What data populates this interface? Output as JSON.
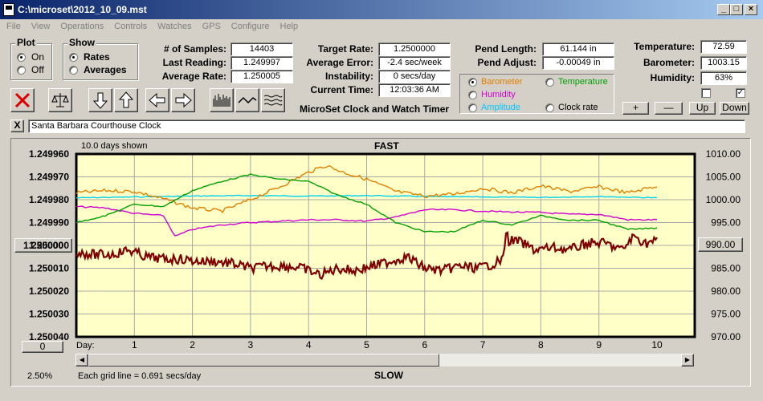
{
  "window": {
    "title": "C:\\microset\\2012_10_09.mst"
  },
  "menu": [
    "File",
    "View",
    "Operations",
    "Controls",
    "Watches",
    "GPS",
    "Configure",
    "Help"
  ],
  "plot_group": {
    "title": "Plot",
    "options": [
      "On",
      "Off"
    ],
    "selected": "On"
  },
  "show_group": {
    "title": "Show",
    "options": [
      "Rates",
      "Averages"
    ],
    "selected": "Rates"
  },
  "stats": {
    "samples_label": "# of Samples:",
    "samples": "14403",
    "last_label": "Last Reading:",
    "last": "1.249997",
    "avg_label": "Average Rate:",
    "avg": "1.250005",
    "target_label": "Target Rate:",
    "target": "1.2500000",
    "avgerr_label": "Average Error:",
    "avgerr": "-2.4 sec/week",
    "instab_label": "Instability:",
    "instab": "0 secs/day",
    "time_label": "Current Time:",
    "time": "12:03:36 AM",
    "pendlen_label": "Pend Length:",
    "pendlen": "61.144 in",
    "pendadj_label": "Pend Adjust:",
    "pendadj": "-0.00049 in",
    "temp_label": "Temperature:",
    "temp": "72.59",
    "baro_label": "Barometer:",
    "baro": "1003.15",
    "hum_label": "Humidity:",
    "hum": "63%"
  },
  "overlay": {
    "options": [
      {
        "label": "Barometer",
        "color": "#ff8c00",
        "selected": true
      },
      {
        "label": "Temperature",
        "color": "#00b000",
        "selected": false
      },
      {
        "label": "Humidity",
        "color": "#d000d0",
        "selected": false
      },
      {
        "label": "Clock rate",
        "color": "#000000",
        "selected": false
      },
      {
        "label": "Amplitude",
        "color": "#00c8ff",
        "selected": false
      }
    ]
  },
  "adjust_buttons": {
    "plus": "+",
    "minus": "—",
    "up": "Up",
    "down": "Down"
  },
  "app_title": "MicroSet Clock and Watch Timer",
  "clock_name": "Santa Barbara Courthouse Clock",
  "close_x": "X",
  "chart_header": {
    "days_shown": "10.0 days shown",
    "top": "FAST",
    "bottom": "SLOW",
    "grid_note": "Each grid line = 0.691 secs/day",
    "scale": "2.50%",
    "day_label": "Day:"
  },
  "left_center_button": "1.250000",
  "right_center_button": "990.00",
  "scroll_button": "0",
  "colors": {
    "rate": "#800000",
    "baro": "#e08000",
    "temp": "#00a000",
    "hum": "#d000d0",
    "amp": "#00d0f0",
    "plotbg": "#ffffc8"
  },
  "chart_data": {
    "type": "line",
    "xlim": [
      0,
      10
    ],
    "x_ticks": [
      "1",
      "2",
      "3",
      "4",
      "5",
      "6",
      "7",
      "8",
      "9",
      "10"
    ],
    "left_axis": {
      "ticks": [
        "1.249960",
        "1.249970",
        "1.249980",
        "1.249990",
        "1.250000",
        "1.250010",
        "1.250020",
        "1.250030",
        "1.250040"
      ],
      "range": [
        1.24996,
        1.25004
      ],
      "inverted": true
    },
    "right_axis": {
      "ticks": [
        "1010.00",
        "1005.00",
        "1000.00",
        "995.00",
        "990.00",
        "985.00",
        "980.00",
        "975.00",
        "970.00"
      ],
      "range": [
        970,
        1010
      ]
    },
    "series": [
      {
        "key": "rate",
        "axis": "left",
        "x": [
          0,
          0.3,
          0.6,
          0.9,
          1.2,
          1.5,
          1.8,
          2.1,
          2.4,
          2.7,
          3,
          3.3,
          3.6,
          3.9,
          4.2,
          4.5,
          4.8,
          5.1,
          5.4,
          5.7,
          6,
          6.3,
          6.6,
          6.9,
          7.2,
          7.35,
          7.4,
          7.45,
          7.6,
          7.9,
          8.2,
          8.5,
          8.8,
          9.1,
          9.4,
          9.6,
          9.8,
          10
        ],
        "y": [
          1.250003,
          1.250004,
          1.250004,
          1.250002,
          1.250005,
          1.250006,
          1.250006,
          1.250007,
          1.250007,
          1.250008,
          1.25001,
          1.250009,
          1.250009,
          1.25001,
          1.250013,
          1.25001,
          1.250011,
          1.250009,
          1.250007,
          1.250005,
          1.25001,
          1.250011,
          1.250009,
          1.25001,
          1.250008,
          1.250006,
          1.249994,
          1.249998,
          1.249998,
          1.250002,
          1.250001,
          1.250002,
          1.249999,
          1.249999,
          1.250002,
          1.249996,
          1.249999,
          1.249998
        ]
      },
      {
        "key": "baro",
        "axis": "right",
        "x": [
          0,
          0.5,
          1,
          1.5,
          2,
          2.5,
          3,
          3.5,
          4,
          4.3,
          4.6,
          5,
          5.5,
          6,
          6.5,
          7,
          7.5,
          8,
          8.5,
          9,
          9.5,
          10
        ],
        "y": [
          1001.5,
          1002,
          1001.8,
          1000.2,
          998.2,
          997.5,
          1000,
          1002.8,
          1006,
          1007.5,
          1006,
          1004.5,
          1001.8,
          1000.8,
          1001.2,
          1002.5,
          1001.5,
          1003,
          1001.8,
          1002.8,
          1001.5,
          1003
        ]
      },
      {
        "key": "temp",
        "axis": "right",
        "x": [
          0,
          0.5,
          1,
          1.5,
          2,
          2.5,
          3,
          3.5,
          4,
          4.5,
          5,
          5.5,
          6,
          6.5,
          7,
          7.5,
          8,
          8.5,
          9,
          9.5,
          10
        ],
        "y": [
          995,
          996.5,
          999,
          998.5,
          1002,
          1004,
          1005.5,
          1004.5,
          1004,
          1001,
          999,
          995,
          993,
          993,
          995.5,
          994.5,
          996.5,
          995.5,
          995.5,
          993.5,
          993.8
        ]
      },
      {
        "key": "hum",
        "axis": "right",
        "x": [
          0,
          0.5,
          1,
          1.5,
          1.7,
          2,
          2.5,
          3,
          3.5,
          4,
          4.5,
          5,
          5.5,
          6,
          6.5,
          7,
          7.5,
          8,
          8.5,
          9,
          9.5,
          10
        ],
        "y": [
          998.5,
          998.2,
          997,
          996.5,
          992,
          993.5,
          994.5,
          995,
          995.3,
          995.6,
          995.6,
          995.3,
          996.2,
          997.8,
          997.8,
          997.5,
          997.3,
          997.2,
          996.8,
          996.8,
          995.6,
          995.6
        ]
      },
      {
        "key": "amp",
        "axis": "right",
        "x": [
          0,
          1,
          2,
          3,
          4,
          5,
          6,
          7,
          8,
          9,
          10
        ],
        "y": [
          1000.4,
          1000.6,
          1000.8,
          1000.9,
          1000.8,
          1000.9,
          1000.7,
          1000.6,
          1000.5,
          1000.7,
          1000.4
        ]
      }
    ]
  }
}
